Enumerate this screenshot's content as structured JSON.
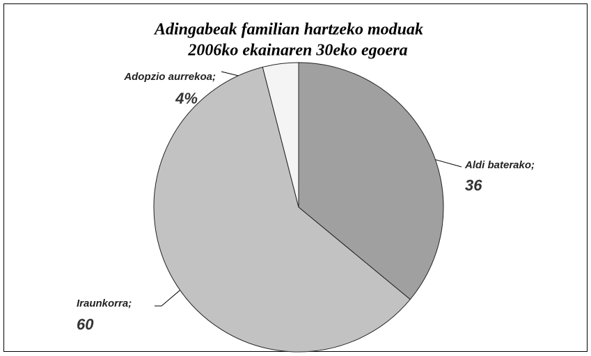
{
  "chart_data": {
    "type": "pie",
    "title": "Adingabeak familian hartzeko moduak",
    "subtitle": "2006ko ekainaren 30eko egoera",
    "categories": [
      "Aldi baterako;",
      "Iraunkorra;",
      "Adopzio aurrekoa;"
    ],
    "values": [
      36,
      60,
      4
    ],
    "value_labels": [
      "36",
      "60",
      "4%"
    ],
    "colors": [
      "#a0a0a0",
      "#c2c2c2",
      "#f4f4f4"
    ]
  }
}
